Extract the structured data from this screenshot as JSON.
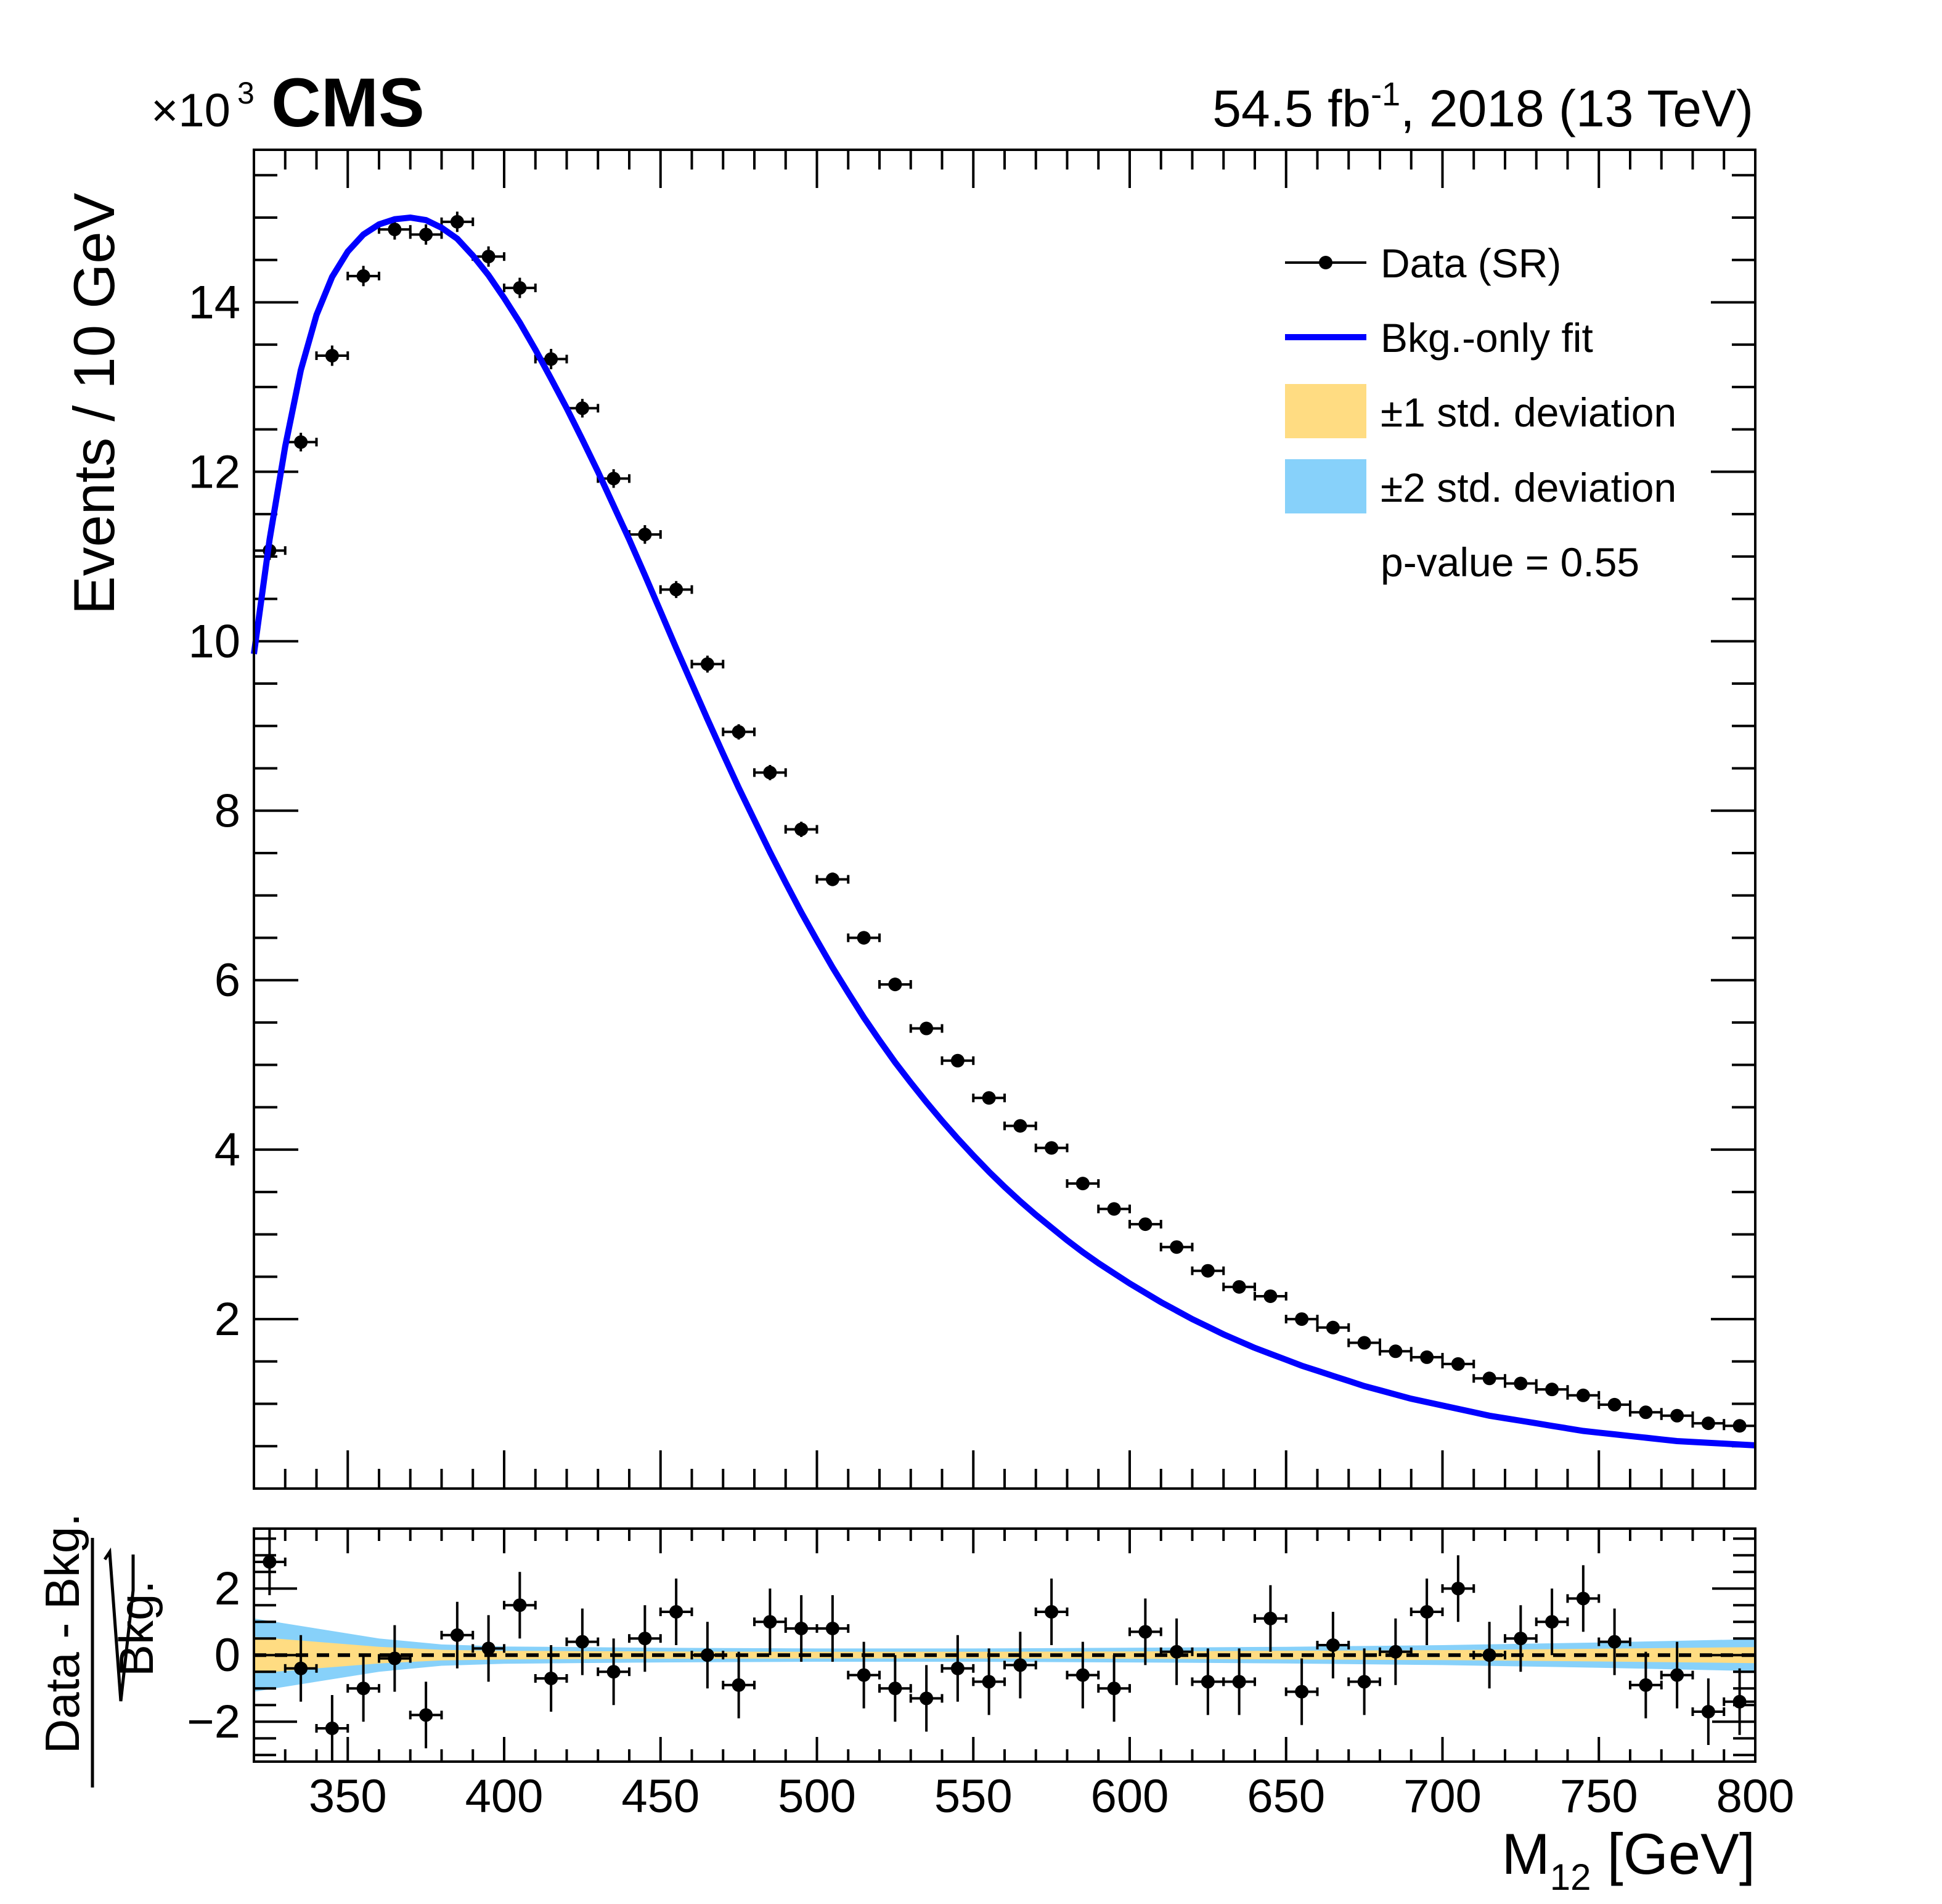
{
  "header": {
    "cms_label": "CMS",
    "exponent_prefix": "×10",
    "exponent_power": "3",
    "lumi_value": "54.5 fb",
    "lumi_sup": "-1",
    "lumi_suffix": ", 2018 (13 TeV)"
  },
  "axes": {
    "ylabel_top": "Events / 10 GeV",
    "ylabel_bottom_num": "Data - Bkg.",
    "ylabel_bottom_den": "Bkg.",
    "xlabel_main": "M",
    "xlabel_sub": "12",
    "xlabel_unit": " [GeV]"
  },
  "legend": {
    "data": "Data (SR)",
    "fit": "Bkg.-only fit",
    "band1": "±1 std. deviation",
    "band2": "±2 std. deviation",
    "pvalue": "p-value = 0.55"
  },
  "colors": {
    "data": "#000000",
    "fit": "#0000ff",
    "band1": "#ffdc82",
    "band2": "#87d1fa"
  },
  "chart_data": [
    {
      "type": "scatter",
      "panel": "main",
      "title": "",
      "xlabel": "M12 [GeV]",
      "ylabel": "Events / 10 GeV",
      "y_scale_label": "×10^3",
      "xlim": [
        320,
        800
      ],
      "ylim": [
        0,
        15.8
      ],
      "x_ticks": [
        350,
        400,
        450,
        500,
        550,
        600,
        650,
        700,
        750,
        800
      ],
      "y_ticks": [
        2,
        4,
        6,
        8,
        10,
        12,
        14
      ],
      "y_tick_labels": [
        "2",
        "4",
        "6",
        "8",
        "10",
        "12",
        "14"
      ],
      "bin_width": 10,
      "legend_position": "top-right",
      "series": [
        {
          "name": "Data (SR)",
          "kind": "points_with_errors",
          "x": [
            325,
            335,
            345,
            355,
            365,
            375,
            385,
            395,
            405,
            415,
            425,
            435,
            445,
            455,
            465,
            475,
            485,
            495,
            505,
            515,
            525,
            535,
            545,
            555,
            565,
            575,
            585,
            595,
            605,
            615,
            625,
            635,
            645,
            655,
            665,
            675,
            685,
            695,
            705,
            715,
            725,
            735,
            745,
            755,
            765,
            775,
            785,
            795
          ],
          "y": [
            11.07,
            12.35,
            13.37,
            14.31,
            14.86,
            14.8,
            14.95,
            14.54,
            14.17,
            13.33,
            12.75,
            11.92,
            11.26,
            10.61,
            9.73,
            8.93,
            8.45,
            7.78,
            7.19,
            6.5,
            5.95,
            5.43,
            5.05,
            4.61,
            4.28,
            4.02,
            3.6,
            3.3,
            3.12,
            2.85,
            2.57,
            2.38,
            2.27,
            2.0,
            1.9,
            1.72,
            1.62,
            1.55,
            1.47,
            1.3,
            1.24,
            1.17,
            1.1,
            0.99,
            0.9,
            0.86,
            0.77,
            0.74
          ],
          "yerr": [
            0.11,
            0.11,
            0.12,
            0.12,
            0.12,
            0.12,
            0.12,
            0.12,
            0.12,
            0.12,
            0.11,
            0.11,
            0.11,
            0.1,
            0.1,
            0.09,
            0.09,
            0.09,
            0.08,
            0.08,
            0.08,
            0.07,
            0.07,
            0.07,
            0.07,
            0.06,
            0.06,
            0.06,
            0.06,
            0.05,
            0.05,
            0.05,
            0.05,
            0.04,
            0.04,
            0.04,
            0.04,
            0.04,
            0.04,
            0.04,
            0.04,
            0.03,
            0.03,
            0.03,
            0.03,
            0.03,
            0.03,
            0.03
          ]
        },
        {
          "name": "Bkg.-only fit",
          "kind": "line",
          "x": [
            320,
            325,
            330,
            335,
            340,
            345,
            350,
            355,
            360,
            365,
            370,
            375,
            380,
            385,
            390,
            395,
            400,
            405,
            410,
            415,
            420,
            425,
            430,
            435,
            440,
            445,
            450,
            455,
            460,
            465,
            470,
            475,
            480,
            485,
            490,
            495,
            500,
            505,
            510,
            515,
            520,
            525,
            530,
            535,
            540,
            545,
            550,
            555,
            560,
            565,
            570,
            575,
            580,
            585,
            590,
            595,
            600,
            605,
            610,
            615,
            620,
            625,
            630,
            635,
            640,
            645,
            650,
            655,
            660,
            665,
            670,
            675,
            680,
            685,
            690,
            695,
            700,
            705,
            710,
            715,
            720,
            725,
            730,
            735,
            740,
            745,
            750,
            755,
            760,
            765,
            770,
            775,
            780,
            785,
            790,
            795,
            800
          ],
          "y": [
            9.85,
            11.2,
            12.3,
            13.2,
            13.85,
            14.3,
            14.6,
            14.8,
            14.92,
            14.98,
            15.0,
            14.97,
            14.88,
            14.75,
            14.55,
            14.32,
            14.05,
            13.76,
            13.44,
            13.1,
            12.75,
            12.38,
            12.0,
            11.6,
            11.2,
            10.78,
            10.35,
            9.92,
            9.5,
            9.08,
            8.67,
            8.27,
            7.89,
            7.51,
            7.15,
            6.8,
            6.47,
            6.15,
            5.85,
            5.56,
            5.29,
            5.03,
            4.79,
            4.56,
            4.34,
            4.13,
            3.93,
            3.74,
            3.56,
            3.39,
            3.23,
            3.08,
            2.93,
            2.79,
            2.66,
            2.54,
            2.42,
            2.31,
            2.2,
            2.1,
            2.0,
            1.91,
            1.82,
            1.74,
            1.66,
            1.59,
            1.52,
            1.45,
            1.39,
            1.33,
            1.27,
            1.21,
            1.16,
            1.11,
            1.06,
            1.02,
            0.98,
            0.94,
            0.9,
            0.86,
            0.83,
            0.8,
            0.77,
            0.74,
            0.71,
            0.68,
            0.66,
            0.64,
            0.62,
            0.6,
            0.58,
            0.56,
            0.55,
            0.54,
            0.53,
            0.52,
            0.51
          ]
        }
      ]
    },
    {
      "type": "scatter",
      "panel": "ratio",
      "xlabel": "M12 [GeV]",
      "ylabel": "Data - Bkg. / sqrt(Bkg.)",
      "xlim": [
        320,
        800
      ],
      "ylim": [
        -3.2,
        3.8
      ],
      "x_ticks": [
        350,
        400,
        450,
        500,
        550,
        600,
        650,
        700,
        750,
        800
      ],
      "x_tick_labels": [
        "350",
        "400",
        "450",
        "500",
        "550",
        "600",
        "650",
        "700",
        "750",
        "800"
      ],
      "y_ticks": [
        -2,
        0,
        2
      ],
      "y_tick_labels": [
        "−2",
        "0",
        "2"
      ],
      "reference_line": 0,
      "series": [
        {
          "name": "Data (SR)",
          "kind": "points_with_errors",
          "x": [
            325,
            335,
            345,
            355,
            365,
            375,
            385,
            395,
            405,
            415,
            425,
            435,
            445,
            455,
            465,
            475,
            485,
            495,
            505,
            515,
            525,
            535,
            545,
            555,
            565,
            575,
            585,
            595,
            605,
            615,
            625,
            635,
            645,
            655,
            665,
            675,
            685,
            695,
            705,
            715,
            725,
            735,
            745,
            755,
            765,
            775,
            785,
            795
          ],
          "y": [
            2.8,
            -0.4,
            -2.2,
            -1.0,
            -0.1,
            -1.8,
            0.6,
            0.2,
            1.5,
            -0.7,
            0.4,
            -0.5,
            0.5,
            1.3,
            0.0,
            -0.9,
            1.0,
            0.8,
            0.8,
            -0.6,
            -1.0,
            -1.3,
            -0.4,
            -0.8,
            -0.3,
            1.3,
            -0.6,
            -1.0,
            0.7,
            0.1,
            -0.8,
            -0.8,
            1.1,
            -1.1,
            0.3,
            -0.8,
            0.1,
            1.3,
            2.0,
            0.0,
            0.5,
            1.0,
            1.7,
            0.4,
            -0.9,
            -0.6,
            -1.7,
            -1.4
          ],
          "yerr": [
            1,
            1,
            1,
            1,
            1,
            1,
            1,
            1,
            1,
            1,
            1,
            1,
            1,
            1,
            1,
            1,
            1,
            1,
            1,
            1,
            1,
            1,
            1,
            1,
            1,
            1,
            1,
            1,
            1,
            1,
            1,
            1,
            1,
            1,
            1,
            1,
            1,
            1,
            1,
            1,
            1,
            1,
            1,
            1,
            1,
            1,
            1,
            1
          ]
        },
        {
          "name": "±2 std. deviation",
          "kind": "band",
          "x": [
            320,
            340,
            360,
            380,
            400,
            450,
            500,
            550,
            600,
            650,
            700,
            750,
            800
          ],
          "upper": [
            1.1,
            0.8,
            0.5,
            0.32,
            0.26,
            0.22,
            0.2,
            0.2,
            0.22,
            0.25,
            0.3,
            0.38,
            0.48
          ],
          "lower": [
            -1.1,
            -0.8,
            -0.5,
            -0.32,
            -0.26,
            -0.22,
            -0.2,
            -0.2,
            -0.22,
            -0.25,
            -0.3,
            -0.38,
            -0.48
          ]
        },
        {
          "name": "±1 std. deviation",
          "kind": "band",
          "x": [
            320,
            340,
            360,
            380,
            400,
            450,
            500,
            550,
            600,
            650,
            700,
            750,
            800
          ],
          "upper": [
            0.55,
            0.4,
            0.25,
            0.16,
            0.13,
            0.11,
            0.1,
            0.1,
            0.11,
            0.13,
            0.15,
            0.19,
            0.24
          ],
          "lower": [
            -0.55,
            -0.4,
            -0.25,
            -0.16,
            -0.13,
            -0.11,
            -0.1,
            -0.1,
            -0.11,
            -0.13,
            -0.15,
            -0.19,
            -0.24
          ]
        }
      ]
    }
  ]
}
